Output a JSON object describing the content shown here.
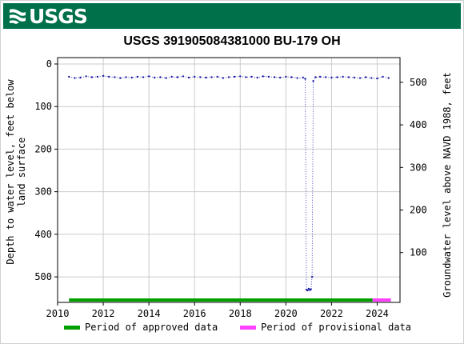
{
  "header": {
    "logo_text": "USGS",
    "brand_color": "#00704a"
  },
  "colors": {
    "data_points": "#1a1aa8",
    "approved": "#00a000",
    "provisional": "#ff40ff",
    "grid": "#cccccc"
  },
  "legend": {
    "approved_label": "Period of approved data",
    "provisional_label": "Period of provisional data"
  },
  "chart_data": {
    "type": "scatter",
    "title": "USGS 391905084381000 BU-179 OH",
    "xlabel": "",
    "ylabel": "Depth to water level, feet below land surface",
    "ylabel_right": "Groundwater level above NAVD 1988, feet",
    "xlim": [
      2010,
      2025
    ],
    "ylim": [
      560,
      -10
    ],
    "y_inverted": true,
    "x_ticks": [
      "2010",
      "2012",
      "2014",
      "2016",
      "2018",
      "2020",
      "2022",
      "2024"
    ],
    "y_ticks": [
      "0",
      "100",
      "200",
      "300",
      "400",
      "500"
    ],
    "y_right_ticks": [
      "500",
      "400",
      "300",
      "200",
      "100"
    ],
    "grid": true,
    "legend_position": "bottom",
    "series": [
      {
        "x": [
          2010.5,
          2010.75,
          2011.0,
          2011.25,
          2011.5,
          2011.75,
          2012.0,
          2012.25,
          2012.5,
          2012.75,
          2013.0,
          2013.25,
          2013.5,
          2013.75,
          2014.0,
          2014.25,
          2014.5,
          2014.75,
          2015.0,
          2015.25,
          2015.5,
          2015.75,
          2016.0,
          2016.25,
          2016.5,
          2016.75,
          2017.0,
          2017.25,
          2017.5,
          2017.75,
          2018.0,
          2018.25,
          2018.5,
          2018.75,
          2019.0,
          2019.25,
          2019.5,
          2019.75,
          2020.0,
          2020.25,
          2020.5,
          2020.75,
          2020.85,
          2020.9,
          2020.95,
          2021.0,
          2021.05,
          2021.1,
          2021.15,
          2021.2,
          2021.3,
          2021.5,
          2021.75,
          2022.0,
          2022.25,
          2022.5,
          2022.75,
          2023.0,
          2023.25,
          2023.5,
          2023.75,
          2024.0,
          2024.25,
          2024.5
        ],
        "y": [
          30,
          33,
          32,
          29,
          31,
          30,
          28,
          30,
          31,
          33,
          31,
          32,
          30,
          31,
          29,
          32,
          31,
          33,
          30,
          31,
          29,
          32,
          30,
          31,
          32,
          31,
          30,
          33,
          31,
          30,
          29,
          31,
          30,
          32,
          29,
          30,
          31,
          32,
          30,
          31,
          33,
          32,
          35,
          530,
          532,
          528,
          531,
          529,
          500,
          40,
          31,
          30,
          31,
          32,
          31,
          30,
          31,
          32,
          33,
          31,
          33,
          34,
          30,
          33
        ]
      }
    ],
    "approved_period": [
      2010.5,
      2023.8
    ],
    "provisional_period": [
      2023.8,
      2024.6
    ]
  }
}
